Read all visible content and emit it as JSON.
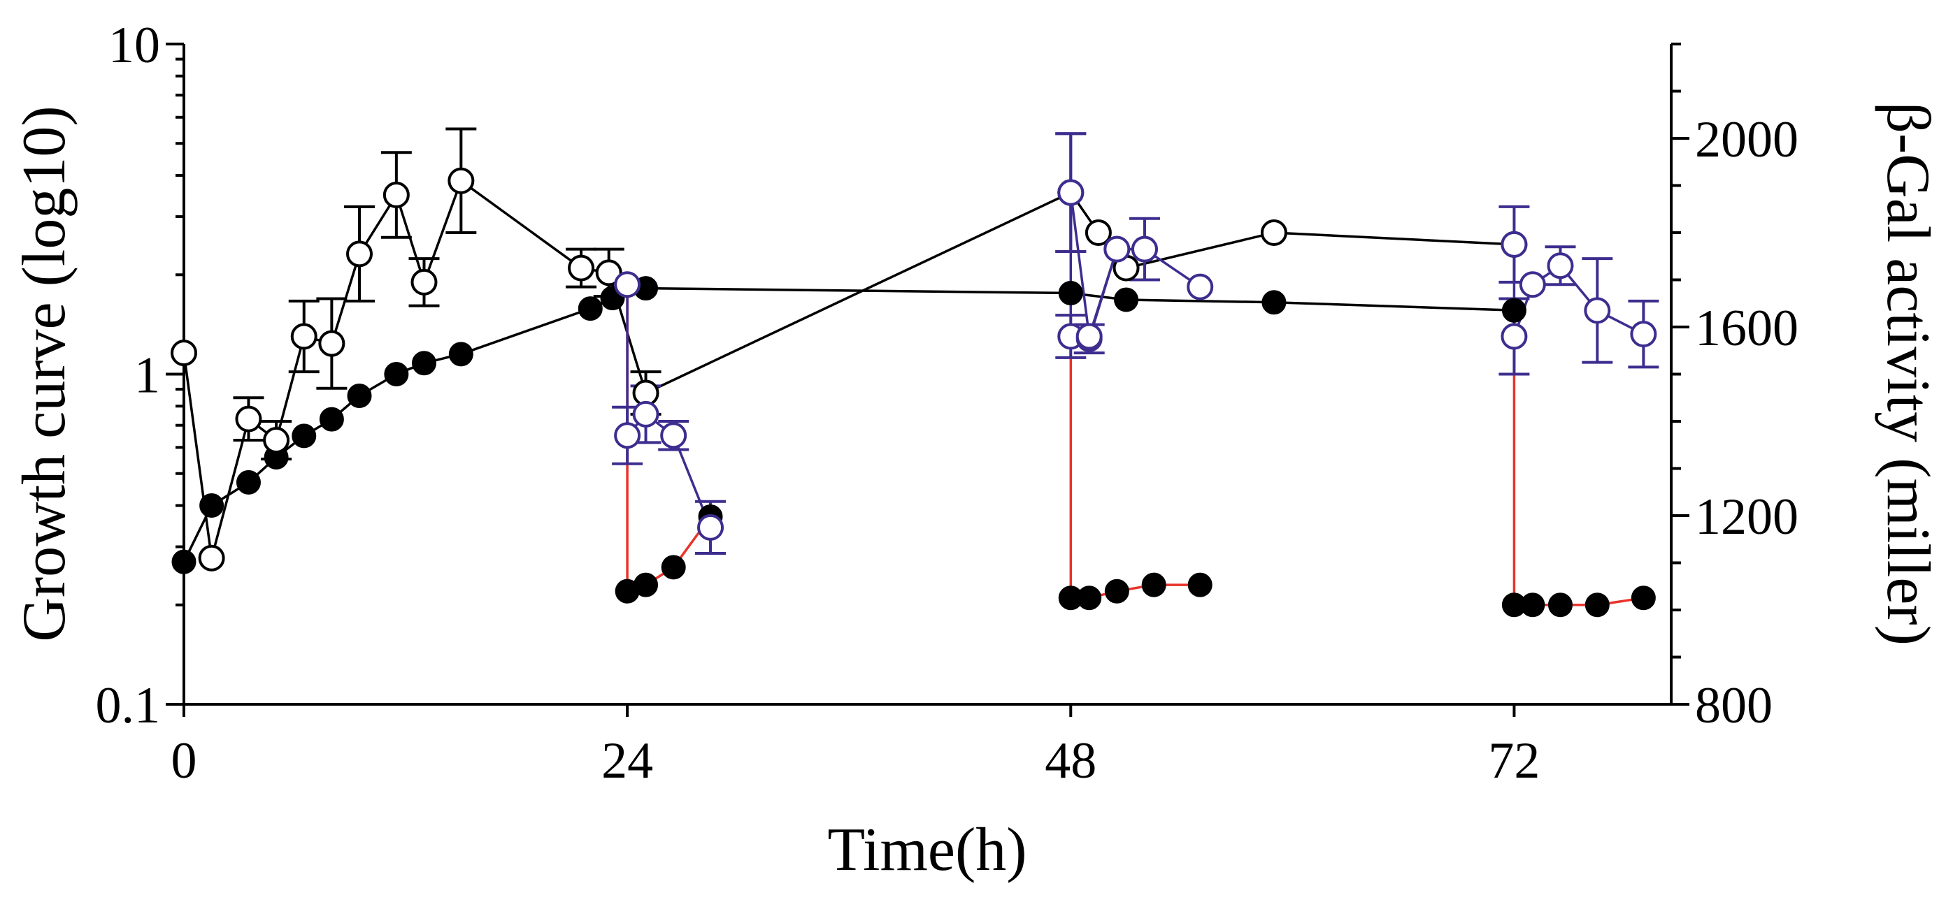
{
  "chart_data": {
    "type": "line",
    "xlabel": "Time(h)",
    "ylabel_left": "Growth curve (log10)",
    "ylabel_right": "β-Gal activity (miller)",
    "x_ticks": [
      0,
      24,
      48,
      72
    ],
    "x_tick_labels": [
      "0",
      "24",
      "48",
      "72"
    ],
    "x_range": [
      0,
      80.5
    ],
    "y_left_scale": "log",
    "y_left_range": [
      0.1,
      10
    ],
    "y_left_ticks": [
      0.1,
      1,
      10
    ],
    "y_left_tick_labels": [
      "0.1",
      "1",
      "10"
    ],
    "y_right_range": [
      800,
      2200
    ],
    "y_right_ticks": [
      800,
      1200,
      1600,
      2000
    ],
    "y_right_tick_labels": [
      "800",
      "1200",
      "1600",
      "2000"
    ],
    "colors": {
      "black": "#000000",
      "red": "#e8342a",
      "blue": "#3e2d8f"
    },
    "series": [
      {
        "name": "growth-main",
        "axis": "left",
        "marker": "filled",
        "color": "black",
        "x": [
          0,
          1.5,
          3.5,
          5,
          6.5,
          8,
          9.5,
          11.5,
          13,
          15,
          22,
          23.2,
          25,
          48,
          51,
          59,
          72
        ],
        "y": [
          0.27,
          0.4,
          0.47,
          0.56,
          0.65,
          0.73,
          0.86,
          1.0,
          1.08,
          1.15,
          1.58,
          1.7,
          1.82,
          1.76,
          1.68,
          1.65,
          1.56
        ]
      },
      {
        "name": "beta-gal-main",
        "axis": "right",
        "marker": "open",
        "color": "black",
        "x": [
          0,
          1.5,
          3.5,
          5,
          6.5,
          8,
          9.5,
          11.5,
          13,
          15,
          21.5,
          23,
          25,
          48,
          49.5,
          51,
          59,
          72
        ],
        "y": [
          1545,
          1110,
          1405,
          1360,
          1580,
          1565,
          1755,
          1880,
          1695,
          1910,
          1725,
          1715,
          1460,
          1885,
          1800,
          1725,
          1800,
          1775
        ],
        "err": [
          0,
          0,
          45,
          40,
          75,
          95,
          100,
          90,
          50,
          110,
          40,
          50,
          45,
          0,
          0,
          0,
          0,
          0
        ]
      },
      {
        "name": "growth-red-24",
        "axis": "left",
        "marker": "filled",
        "color": "red",
        "x": [
          24,
          24,
          25,
          26.5,
          28.5
        ],
        "y": [
          1.72,
          0.22,
          0.23,
          0.26,
          0.37
        ]
      },
      {
        "name": "growth-red-48",
        "axis": "left",
        "marker": "filled",
        "color": "red",
        "x": [
          48,
          48,
          49,
          50.5,
          52.5,
          55
        ],
        "y": [
          1.76,
          0.21,
          0.21,
          0.22,
          0.23,
          0.23
        ]
      },
      {
        "name": "growth-red-72",
        "axis": "left",
        "marker": "filled",
        "color": "red",
        "x": [
          72,
          72,
          73,
          74.5,
          76.5,
          79
        ],
        "y": [
          1.56,
          0.2,
          0.2,
          0.2,
          0.2,
          0.21
        ]
      },
      {
        "name": "beta-gal-blue-24",
        "axis": "right",
        "marker": "open",
        "color": "blue",
        "x": [
          24,
          24,
          25,
          26.5,
          28.5
        ],
        "y": [
          1690,
          1370,
          1415,
          1370,
          1175
        ],
        "err": [
          0,
          60,
          60,
          30,
          55
        ]
      },
      {
        "name": "beta-gal-blue-48",
        "axis": "right",
        "marker": "open",
        "color": "blue",
        "x": [
          48,
          48,
          49,
          50.5,
          52,
          55
        ],
        "y": [
          1885,
          1580,
          1575,
          1765,
          1765,
          1685
        ],
        "err": [
          125,
          45,
          30,
          0,
          0,
          0
        ]
      },
      {
        "name": "beta-gal-blue-48-upper",
        "axis": "right",
        "marker": "open",
        "color": "blue",
        "x": [
          48,
          49,
          50.5,
          52
        ],
        "y": [
          1885,
          1580,
          1765,
          1765
        ],
        "err": [
          125,
          0,
          0,
          65
        ]
      },
      {
        "name": "beta-gal-blue-72",
        "axis": "right",
        "marker": "open",
        "color": "blue",
        "x": [
          72,
          72,
          73,
          74.5,
          76.5,
          79
        ],
        "y": [
          1775,
          1580,
          1690,
          1730,
          1635,
          1585
        ],
        "err": [
          80,
          80,
          0,
          40,
          110,
          70
        ]
      }
    ]
  }
}
